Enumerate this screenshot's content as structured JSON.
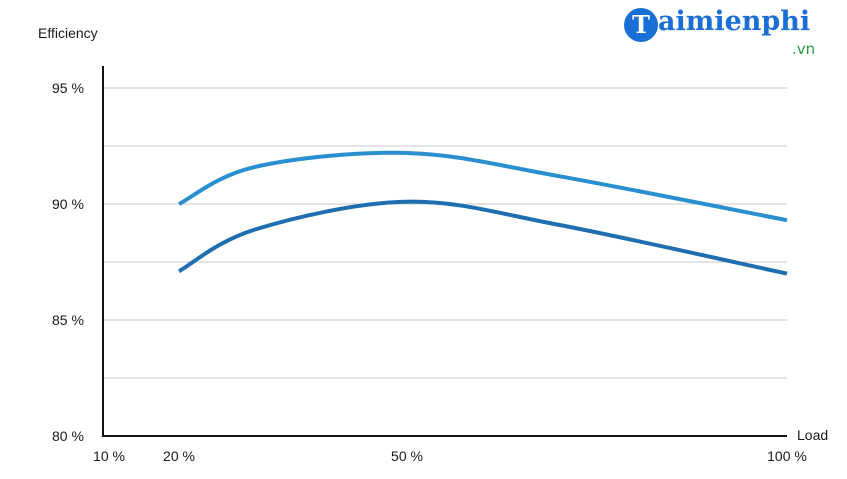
{
  "logo": {
    "initial": "T",
    "name": "aimienphi",
    "tld": ".vn",
    "brand_color": "#1a6fd6",
    "tld_color": "#2a9d4a"
  },
  "chart_data": {
    "type": "line",
    "title": "",
    "ylabel": "Efficiency",
    "xlabel": "Load",
    "xlim": [
      10,
      100
    ],
    "ylim": [
      80,
      95
    ],
    "x_ticks": [
      10,
      20,
      50,
      100
    ],
    "x_tick_labels": [
      "10 %",
      "20 %",
      "50 %",
      "100 %"
    ],
    "y_ticks": [
      80,
      85,
      90,
      95
    ],
    "y_tick_labels": [
      "80 %",
      "85 %",
      "90 %",
      "95 %"
    ],
    "grid_y": [
      82.5,
      85,
      87.5,
      90,
      92.5,
      95
    ],
    "grid": true,
    "series": [
      {
        "x": [
          20,
          30,
          50,
          70,
          100
        ],
        "values": [
          90.0,
          91.6,
          92.2,
          91.2,
          89.3
        ],
        "color": "#2a8fd0"
      },
      {
        "x": [
          20,
          30,
          50,
          70,
          100
        ],
        "values": [
          87.1,
          88.9,
          90.1,
          89.1,
          87.0
        ],
        "color": "#1f6fb0"
      }
    ]
  }
}
